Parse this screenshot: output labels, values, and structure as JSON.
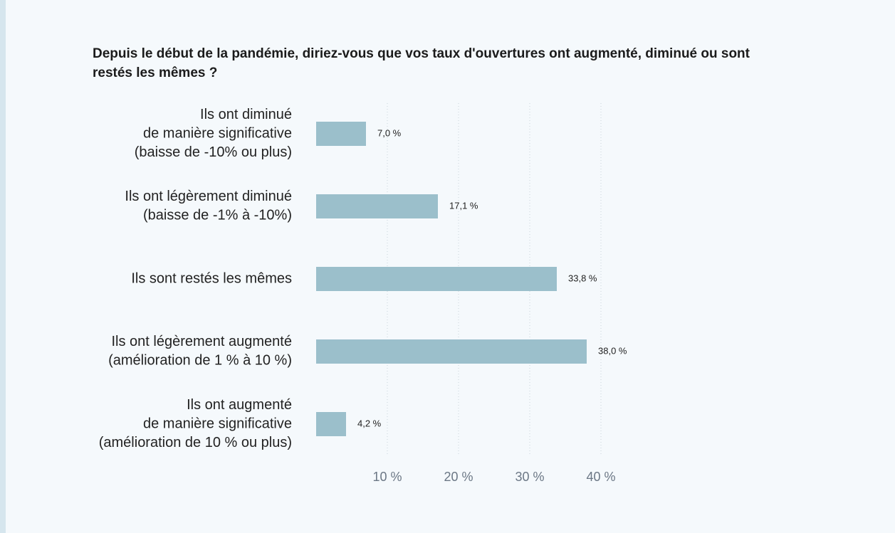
{
  "chart_data": {
    "type": "bar",
    "orientation": "horizontal",
    "title": "Depuis le début de la pandémie, diriez-vous que vos taux d'ouvertures ont augmenté, diminué ou sont restés les mêmes ?",
    "categories": [
      [
        "Ils ont diminué",
        "de manière significative",
        "(baisse de -10% ou plus)"
      ],
      [
        "Ils ont légèrement diminué",
        "(baisse de -1% à -10%)"
      ],
      [
        "Ils sont restés les mêmes"
      ],
      [
        "Ils ont légèrement augmenté",
        "(amélioration de 1 % à 10 %)"
      ],
      [
        "Ils ont augmenté",
        "de manière significative",
        "(amélioration de 10 % ou plus)"
      ]
    ],
    "values": [
      7.0,
      17.1,
      33.8,
      38.0,
      4.2
    ],
    "value_labels": [
      "7,0 %",
      "17,1 %",
      "33,8 %",
      "38,0 %",
      "4,2 %"
    ],
    "xticks": [
      10,
      20,
      30,
      40
    ],
    "xtick_labels": [
      "10 %",
      "20 %",
      "30 %",
      "40 %"
    ],
    "xlim": [
      0,
      40
    ],
    "grid": "vertical-dotted",
    "bar_color": "#9bbfcb",
    "grid_color": "#c9d3da"
  }
}
